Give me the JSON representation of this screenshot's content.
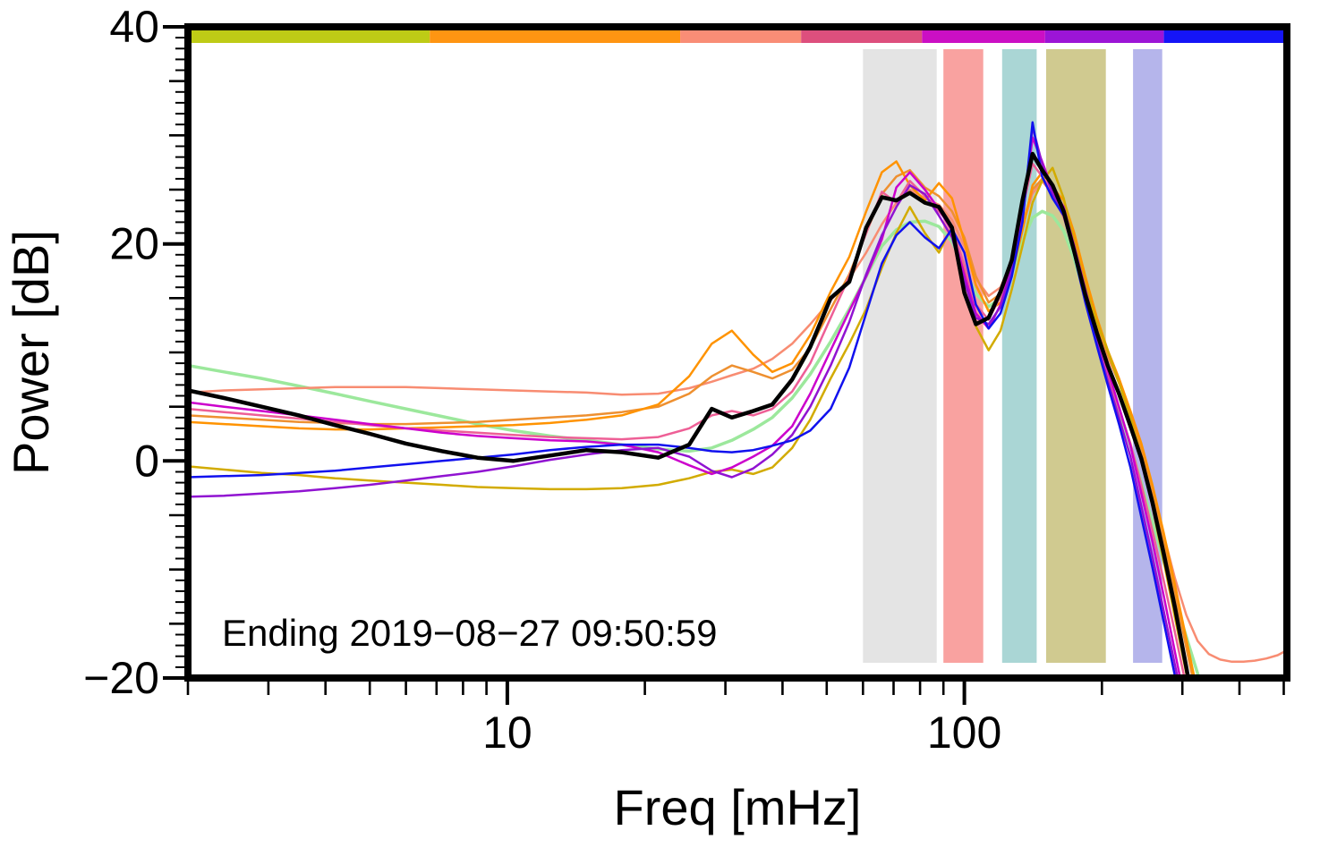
{
  "chart_data": {
    "type": "line",
    "x_scale": "log",
    "xlim": [
      2,
      508
    ],
    "ylim": [
      -20,
      40
    ],
    "xlabel": "Freq [mHz]",
    "ylabel": "Power [dB]",
    "annotation": "Ending 2019−08−27 09:50:59",
    "grid": false,
    "legend": "none",
    "x_major_ticks": [
      10,
      100
    ],
    "x_major_tick_labels": [
      "10",
      "100"
    ],
    "y_major_ticks": [
      40,
      20,
      0,
      -20
    ],
    "y_major_tick_labels": [
      "40",
      "20",
      "0",
      "−20"
    ],
    "bands": [
      {
        "name": "gray-band",
        "x0": 60,
        "x1": 87,
        "color": "#e4e4e4"
      },
      {
        "name": "red-band",
        "x0": 90,
        "x1": 110,
        "color": "#f9a2a0"
      },
      {
        "name": "teal-band",
        "x0": 121,
        "x1": 144,
        "color": "#aad6d5"
      },
      {
        "name": "olive-band",
        "x0": 151,
        "x1": 204,
        "color": "#d0ca90"
      },
      {
        "name": "lavender-band",
        "x0": 234,
        "x1": 271,
        "color": "#b5b5eb"
      }
    ],
    "top_strip": [
      {
        "name": "yellow-green",
        "f0": 0.0,
        "f1": 0.22,
        "color": "#becb16"
      },
      {
        "name": "orange",
        "f0": 0.22,
        "f1": 0.448,
        "color": "#ff9512"
      },
      {
        "name": "salmon",
        "f0": 0.448,
        "f1": 0.558,
        "color": "#f98d76"
      },
      {
        "name": "rose",
        "f0": 0.558,
        "f1": 0.668,
        "color": "#dd4f7d"
      },
      {
        "name": "magenta",
        "f0": 0.668,
        "f1": 0.78,
        "color": "#cb0fc4"
      },
      {
        "name": "purple",
        "f0": 0.78,
        "f1": 0.888,
        "color": "#9c15d6"
      },
      {
        "name": "blue",
        "f0": 0.888,
        "f1": 1.0,
        "color": "#1515f7"
      }
    ],
    "x": [
      2.0,
      2.4,
      2.9,
      3.5,
      4.2,
      5.0,
      6.0,
      7.2,
      8.6,
      10.3,
      12.4,
      14.9,
      17.8,
      21.4,
      25.0,
      28.0,
      31.0,
      34.5,
      38.0,
      42.0,
      46.0,
      51.0,
      56.0,
      61.0,
      66.0,
      71.0,
      76.0,
      82.0,
      88.0,
      94.0,
      100.0,
      106.0,
      113.0,
      120.0,
      127.0,
      134.0,
      141.0,
      148.0,
      156.0,
      165.0,
      174.0,
      184.0,
      195.0,
      206.0,
      218.0,
      231.0,
      244.0,
      258.0,
      273.0,
      289.0,
      306.0,
      324.0,
      343.0,
      363.0,
      385.0,
      408.0,
      432.0,
      458.0,
      485.0,
      505.0
    ],
    "series": [
      {
        "name": "pale-green",
        "color": "#9ce89c",
        "width": 3.5,
        "y": [
          8.8,
          8.2,
          7.6,
          6.9,
          6.2,
          5.5,
          4.8,
          4.1,
          3.4,
          2.8,
          2.3,
          1.9,
          1.5,
          1.1,
          0.9,
          1.2,
          1.9,
          2.9,
          4.0,
          5.8,
          8.0,
          11.0,
          14.0,
          17.0,
          19.8,
          21.3,
          22.0,
          22.1,
          21.6,
          20.2,
          17.8,
          15.4,
          14.2,
          15.0,
          17.3,
          20.2,
          22.4,
          23.0,
          22.6,
          21.2,
          18.6,
          15.2,
          11.6,
          8.2,
          4.8,
          1.4,
          -2.0,
          -5.6,
          -9.2,
          -12.8,
          -16.2,
          -19.6,
          -23.0,
          null,
          null,
          null,
          null,
          null,
          null,
          null
        ]
      },
      {
        "name": "salmon",
        "color": "#f88c72",
        "width": 2.5,
        "y": [
          6.3,
          6.5,
          6.6,
          6.7,
          6.8,
          6.8,
          6.8,
          6.7,
          6.6,
          6.5,
          6.4,
          6.3,
          6.1,
          6.2,
          6.7,
          7.3,
          7.9,
          8.5,
          9.4,
          10.8,
          12.6,
          14.8,
          16.8,
          19.2,
          21.8,
          23.8,
          25.0,
          24.2,
          23.6,
          22.2,
          19.8,
          16.8,
          15.2,
          16.0,
          18.4,
          21.6,
          24.6,
          25.8,
          24.6,
          22.4,
          19.4,
          15.8,
          12.4,
          9.6,
          7.2,
          4.4,
          1.4,
          -2.6,
          -6.8,
          -10.8,
          -14.2,
          -16.6,
          -17.8,
          -18.3,
          -18.5,
          -18.5,
          -18.4,
          -18.2,
          -17.9,
          -17.5
        ]
      },
      {
        "name": "amber",
        "color": "#ee9030",
        "width": 2.5,
        "y": [
          4.2,
          4.0,
          3.8,
          3.6,
          3.5,
          3.4,
          3.4,
          3.5,
          3.6,
          3.8,
          4.0,
          4.2,
          4.5,
          5.0,
          6.2,
          7.8,
          8.8,
          8.2,
          7.6,
          8.4,
          10.4,
          14.0,
          17.2,
          21.0,
          24.6,
          26.2,
          26.8,
          25.2,
          24.4,
          23.0,
          20.6,
          17.0,
          14.6,
          15.4,
          18.0,
          21.8,
          25.0,
          26.0,
          24.6,
          23.2,
          20.2,
          16.2,
          12.6,
          9.8,
          7.2,
          4.2,
          1.0,
          -3.0,
          -7.4,
          -12.2,
          -17.2,
          -22.2,
          null,
          null,
          null,
          null,
          null,
          null,
          null,
          null
        ]
      },
      {
        "name": "orange",
        "color": "#ff9300",
        "width": 2.5,
        "y": [
          3.6,
          3.4,
          3.2,
          3.0,
          2.9,
          2.9,
          3.0,
          3.1,
          3.2,
          3.3,
          3.5,
          3.8,
          4.2,
          5.2,
          7.8,
          10.8,
          12.0,
          9.8,
          8.2,
          9.0,
          11.6,
          15.6,
          18.8,
          23.0,
          26.6,
          27.6,
          25.4,
          24.0,
          25.6,
          24.2,
          20.2,
          16.2,
          13.8,
          14.6,
          17.2,
          21.2,
          25.4,
          26.6,
          25.2,
          24.0,
          21.0,
          17.0,
          13.2,
          10.2,
          7.6,
          4.6,
          1.6,
          -2.2,
          -6.6,
          -11.4,
          -16.4,
          -21.4,
          -26.0,
          null,
          null,
          null,
          null,
          null,
          null,
          null
        ]
      },
      {
        "name": "gold",
        "color": "#d2ab00",
        "width": 2.5,
        "y": [
          -0.5,
          -0.8,
          -1.1,
          -1.3,
          -1.6,
          -1.8,
          -2.0,
          -2.2,
          -2.4,
          -2.5,
          -2.6,
          -2.6,
          -2.5,
          -2.2,
          -1.6,
          -1.0,
          -0.8,
          -1.2,
          -0.6,
          1.2,
          3.8,
          7.6,
          10.8,
          14.0,
          17.8,
          21.0,
          23.4,
          21.0,
          19.2,
          21.6,
          17.4,
          12.4,
          10.2,
          12.0,
          15.8,
          19.8,
          23.8,
          25.8,
          27.0,
          24.2,
          20.2,
          16.2,
          12.8,
          10.2,
          7.2,
          4.0,
          0.4,
          -4.2,
          -9.2,
          -14.4,
          -19.6,
          -24.8,
          null,
          null,
          null,
          null,
          null,
          null,
          null,
          null
        ]
      },
      {
        "name": "pink",
        "color": "#ee5f96",
        "width": 2.5,
        "y": [
          4.8,
          4.5,
          4.2,
          3.9,
          3.6,
          3.3,
          3.0,
          2.8,
          2.6,
          2.4,
          2.2,
          2.1,
          2.0,
          2.2,
          3.0,
          4.2,
          4.6,
          4.2,
          4.8,
          6.4,
          9.0,
          13.2,
          17.0,
          21.0,
          24.8,
          23.8,
          25.8,
          24.4,
          23.0,
          21.6,
          18.0,
          14.4,
          13.0,
          15.2,
          18.8,
          23.2,
          27.4,
          26.2,
          24.8,
          22.8,
          19.2,
          15.2,
          11.4,
          8.0,
          4.8,
          1.6,
          -2.2,
          -6.4,
          -11.0,
          -15.8,
          -20.8,
          -25.8,
          null,
          null,
          null,
          null,
          null,
          null,
          null,
          null
        ]
      },
      {
        "name": "magenta",
        "color": "#cc00cc",
        "width": 2.5,
        "y": [
          5.4,
          5.0,
          4.6,
          4.2,
          3.8,
          3.4,
          3.0,
          2.6,
          2.3,
          2.1,
          1.9,
          1.8,
          1.5,
          0.8,
          -0.4,
          -1.2,
          -0.6,
          0.4,
          1.4,
          3.2,
          6.2,
          10.2,
          13.8,
          17.0,
          20.4,
          25.2,
          26.6,
          25.0,
          23.2,
          21.2,
          17.2,
          13.6,
          12.2,
          14.4,
          18.0,
          22.6,
          29.8,
          27.6,
          25.0,
          23.4,
          19.8,
          15.8,
          11.8,
          8.4,
          5.0,
          1.4,
          -3.0,
          -7.4,
          -12.4,
          -17.6,
          -22.8,
          null,
          null,
          null,
          null,
          null,
          null,
          null,
          null,
          null
        ]
      },
      {
        "name": "purple",
        "color": "#9013d1",
        "width": 2.5,
        "y": [
          -3.3,
          -3.2,
          -3.0,
          -2.8,
          -2.5,
          -2.2,
          -1.8,
          -1.4,
          -1.0,
          -0.5,
          0.1,
          0.6,
          1.0,
          1.2,
          0.4,
          -0.9,
          -1.5,
          -0.7,
          0.6,
          2.4,
          5.0,
          8.8,
          12.8,
          17.2,
          20.8,
          23.4,
          25.4,
          24.6,
          22.6,
          20.6,
          16.6,
          13.2,
          12.6,
          14.2,
          17.6,
          22.0,
          30.8,
          27.4,
          24.6,
          23.0,
          19.4,
          15.0,
          11.0,
          7.4,
          4.0,
          0.4,
          -4.2,
          -8.8,
          -13.8,
          -18.8,
          -23.8,
          null,
          null,
          null,
          null,
          null,
          null,
          null,
          null,
          null
        ]
      },
      {
        "name": "blue",
        "color": "#1111ee",
        "width": 2.5,
        "y": [
          -1.5,
          -1.4,
          -1.3,
          -1.1,
          -0.9,
          -0.6,
          -0.3,
          0.0,
          0.3,
          0.6,
          1.0,
          1.3,
          1.5,
          1.5,
          1.2,
          0.9,
          0.8,
          1.0,
          1.4,
          1.9,
          2.8,
          4.8,
          8.6,
          13.6,
          18.2,
          20.8,
          22.0,
          20.6,
          19.6,
          21.4,
          19.2,
          14.4,
          12.2,
          13.6,
          17.0,
          22.0,
          31.2,
          26.2,
          24.2,
          22.6,
          19.0,
          14.6,
          10.6,
          7.0,
          3.4,
          -0.6,
          -5.2,
          -9.8,
          -14.8,
          -19.8,
          -24.8,
          null,
          null,
          null,
          null,
          null,
          null,
          null,
          null,
          null
        ]
      },
      {
        "name": "black-mean",
        "color": "#000000",
        "width": 4.5,
        "y": [
          6.5,
          5.8,
          5.0,
          4.2,
          3.3,
          2.5,
          1.6,
          0.9,
          0.3,
          0.0,
          0.5,
          1.0,
          0.8,
          0.3,
          1.5,
          4.8,
          4.0,
          4.6,
          5.2,
          7.5,
          10.5,
          15.0,
          16.5,
          21.5,
          24.3,
          24.0,
          24.7,
          23.8,
          23.4,
          21.5,
          15.5,
          12.6,
          13.2,
          15.6,
          18.5,
          24.0,
          28.3,
          26.8,
          25.4,
          23.0,
          19.3,
          15.3,
          11.8,
          8.8,
          6.2,
          3.2,
          0.2,
          -3.8,
          -8.5,
          -13.5,
          -19.0,
          -25.0,
          null,
          null,
          null,
          null,
          null,
          null,
          null,
          null
        ]
      }
    ]
  }
}
